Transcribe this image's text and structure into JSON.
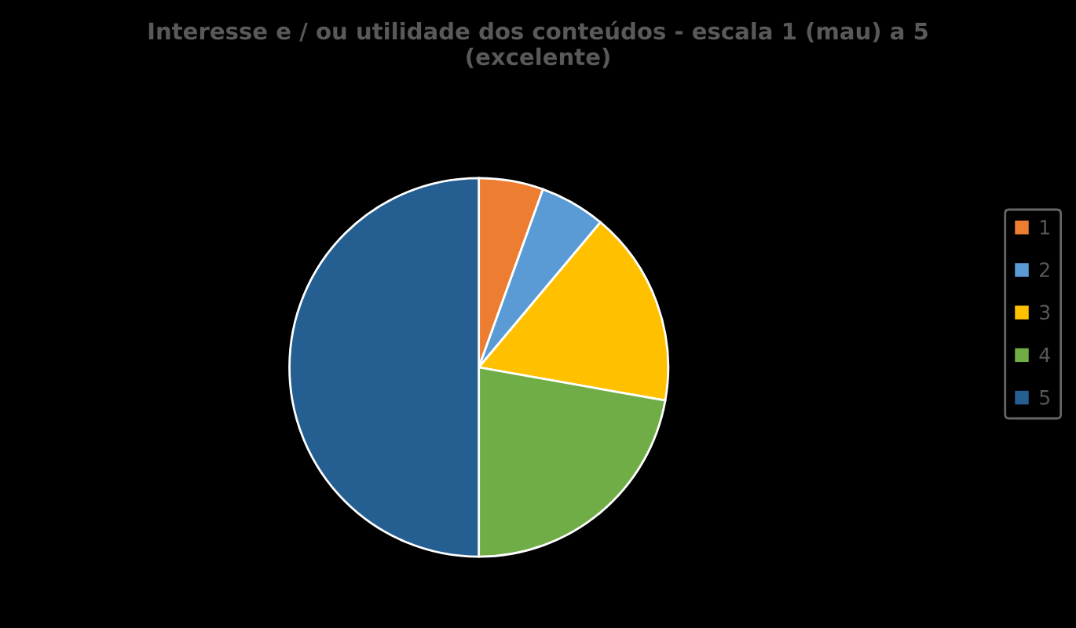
{
  "chart_data": {
    "type": "pie",
    "title": "Interesse e / ou utilidade dos conteúdos - escala 1 (mau) a 5 (excelente)",
    "categories": [
      "1",
      "2",
      "3",
      "4",
      "5"
    ],
    "values": [
      5.5,
      5.6,
      16.7,
      22.2,
      50
    ],
    "colors": [
      "#ed7d31",
      "#5b9bd5",
      "#ffc000",
      "#70ad47",
      "#255e91"
    ],
    "legend": "right"
  }
}
